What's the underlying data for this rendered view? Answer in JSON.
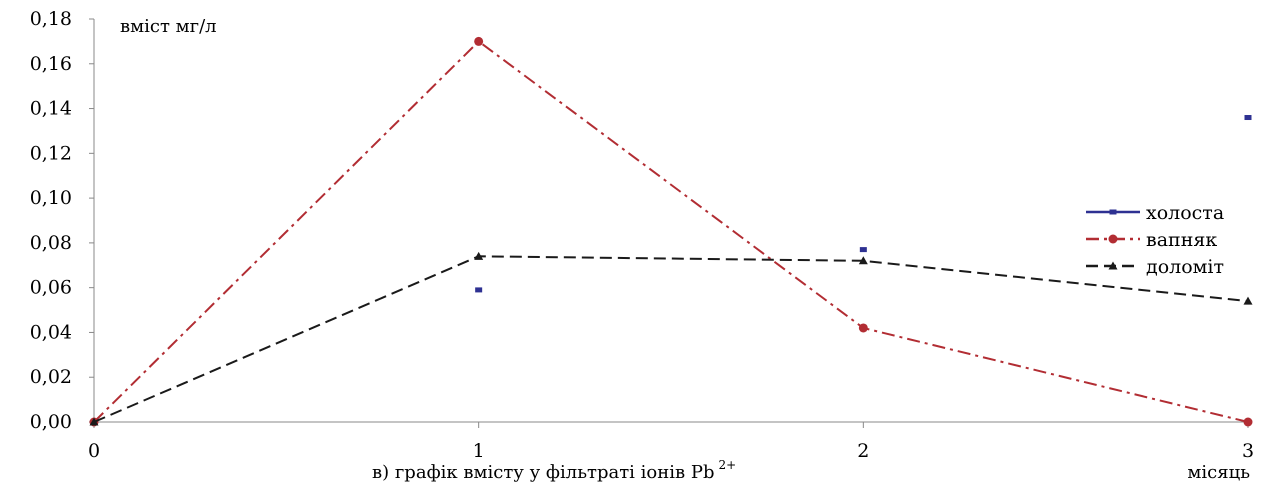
{
  "chart_data": {
    "type": "line",
    "ylabel": "вміст мг/л",
    "xlabel_prefix": "в) графік вмісту у фільтраті іонів Pb",
    "xlabel_superscript": "2+",
    "xunit_label": "місяць",
    "x": [
      0,
      1,
      2,
      3
    ],
    "xlim": [
      0,
      3
    ],
    "ylim": [
      0,
      0.18
    ],
    "y_ticks": [
      0.0,
      0.02,
      0.04,
      0.06,
      0.08,
      0.1,
      0.12,
      0.14,
      0.16,
      0.18
    ],
    "y_tick_labels": [
      "0,00",
      "0,02",
      "0,04",
      "0,06",
      "0,08",
      "0,10",
      "0,12",
      "0,14",
      "0,16",
      "0,18"
    ],
    "x_tick_labels": [
      "0",
      "1",
      "2",
      "3"
    ],
    "grid": false,
    "legend_position": "right",
    "series": [
      {
        "name": "холоста",
        "color": "#2e3192",
        "style": "solid",
        "marker": "square",
        "values": [
          0.0,
          0.059,
          0.077,
          0.136
        ]
      },
      {
        "name": "вапняк",
        "color": "#b22d33",
        "style": "dashdot",
        "marker": "circle",
        "values": [
          0.0,
          0.17,
          0.042,
          0.0
        ]
      },
      {
        "name": "доломіт",
        "color": "#1a1a1a",
        "style": "dashed",
        "marker": "triangle",
        "values": [
          0.0,
          0.074,
          0.072,
          0.054
        ]
      }
    ]
  }
}
